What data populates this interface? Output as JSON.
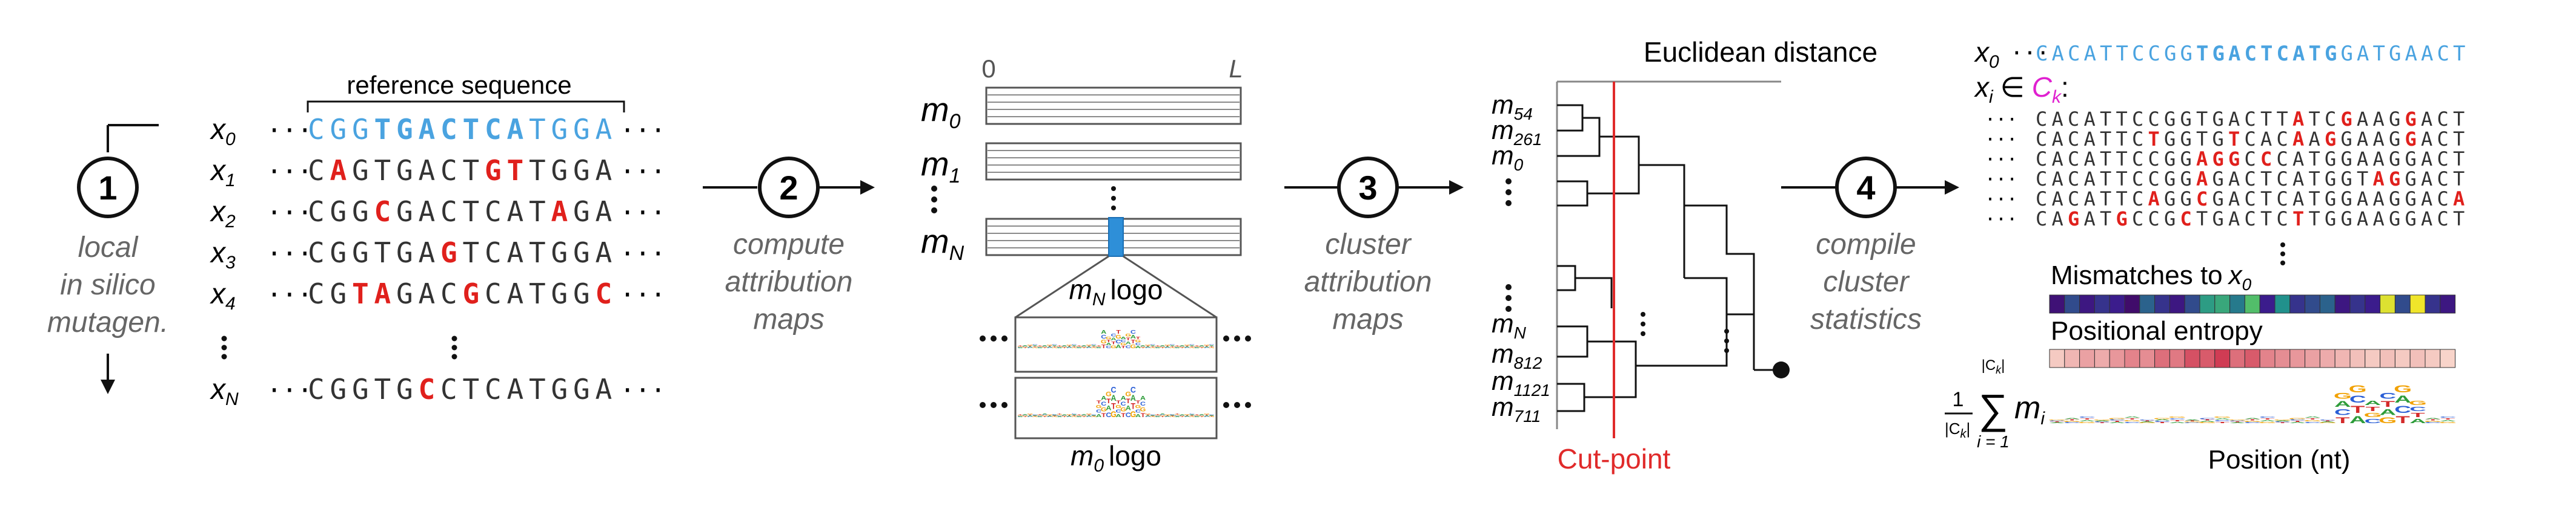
{
  "colors": {
    "reference": "#4aa3e0",
    "mutation": "#e0201c",
    "cluster": "#e020d0",
    "stage_text": "#555555",
    "cut": "#e02a2a",
    "bar": "#2e8fd8"
  },
  "stage1": {
    "step": "1",
    "caption_lines": [
      "local",
      "in silico",
      "mutagen."
    ],
    "reference_label": "reference sequence",
    "rows": [
      {
        "label": "x",
        "sub": "0",
        "seq": "CGGTGACTCATGGA",
        "muts": [],
        "is_ref": true
      },
      {
        "label": "x",
        "sub": "1",
        "seq": "CAGTGACTGTTGGA",
        "muts": [
          1,
          8,
          9
        ]
      },
      {
        "label": "x",
        "sub": "2",
        "seq": "CGGCGACTCATAGA",
        "muts": [
          3,
          11
        ]
      },
      {
        "label": "x",
        "sub": "3",
        "seq": "CGGTGAGTCATGGA",
        "muts": [
          6
        ]
      },
      {
        "label": "x",
        "sub": "4",
        "seq": "CGTAGACGCATGGC",
        "muts": [
          2,
          3,
          7,
          13
        ]
      },
      {
        "label": "x",
        "sub": "N",
        "seq": "CGGTGCCTCATGGA",
        "muts": [
          5
        ]
      }
    ]
  },
  "stage2": {
    "step": "2",
    "caption_lines": [
      "compute",
      "attribution",
      "maps"
    ],
    "axis_start": "0",
    "axis_end": "L",
    "map_labels": [
      {
        "label": "m",
        "sub": "0"
      },
      {
        "label": "m",
        "sub": "1"
      },
      {
        "label": "m",
        "sub": "N"
      }
    ],
    "zoom_logo_label": "m",
    "zoom_logo_sub": "N",
    "zoom_logo_suffix": "logo",
    "bottom_logo_label": "m",
    "bottom_logo_sub": "0",
    "bottom_logo_suffix": "logo"
  },
  "stage3": {
    "step": "3",
    "caption_lines": [
      "cluster",
      "attribution",
      "maps"
    ],
    "title": "Euclidean distance",
    "cut_label": "Cut-point",
    "leaves_top": [
      {
        "label": "m",
        "sub": "54"
      },
      {
        "label": "m",
        "sub": "261"
      },
      {
        "label": "m",
        "sub": "0"
      }
    ],
    "leaves_bottom": [
      {
        "label": "m",
        "sub": "N"
      },
      {
        "label": "m",
        "sub": "812"
      },
      {
        "label": "m",
        "sub": "1121"
      },
      {
        "label": "m",
        "sub": "711"
      }
    ]
  },
  "stage4": {
    "step": "4",
    "caption_lines": [
      "compile",
      "cluster",
      "statistics"
    ],
    "x0_label": "x",
    "x0_sub": "0",
    "x0_seq": "CACATTCCGGTGACTCATGGATGAACT",
    "x0_bold_range": [
      10,
      18
    ],
    "xi_label": "x",
    "xi_sub": "i",
    "in_symbol": "∈",
    "cluster_label": "C",
    "cluster_sub": "k",
    "cluster_rows": [
      {
        "seq": "CACATTCCGGTGACTTATCGAAGGACT",
        "muts": [
          16,
          19,
          23
        ]
      },
      {
        "seq": "CACATTCTGGTGTCACAAGGAAGGACT",
        "muts": [
          7,
          12,
          16,
          18,
          23
        ]
      },
      {
        "seq": "CACATTCCGGAGGCCCATGGAAGGACT",
        "muts": [
          10,
          11,
          12,
          14
        ]
      },
      {
        "seq": "CACATTCCGGAGACTCATGGTAGGACT",
        "muts": [
          10,
          21,
          22
        ]
      },
      {
        "seq": "CACATTCAGGCGACTCATGGAAGGACA",
        "muts": [
          7,
          10,
          26
        ]
      },
      {
        "seq": "CAGATGCCGCTGACTCTTGGAAGGACT",
        "muts": [
          2,
          5,
          9,
          16
        ]
      }
    ],
    "mismatch_title": "Mismatches to",
    "mismatch_var": "x",
    "mismatch_sub": "0",
    "mismatch_values": [
      0.15,
      0.35,
      0.2,
      0.3,
      0.25,
      0.1,
      0.4,
      0.3,
      0.2,
      0.35,
      0.55,
      0.6,
      0.45,
      0.7,
      0.25,
      0.5,
      0.3,
      0.35,
      0.4,
      0.2,
      0.3,
      0.25,
      0.95,
      0.35,
      0.98,
      0.3,
      0.2
    ],
    "entropy_title": "Positional entropy",
    "entropy_values": [
      0.15,
      0.25,
      0.35,
      0.3,
      0.4,
      0.5,
      0.45,
      0.6,
      0.55,
      0.75,
      0.7,
      0.85,
      0.6,
      0.7,
      0.5,
      0.45,
      0.4,
      0.35,
      0.3,
      0.25,
      0.2,
      0.15,
      0.2,
      0.15,
      0.2,
      0.15,
      0.1
    ],
    "formula_num": "1",
    "formula_den": "|C",
    "formula_den_sub": "k",
    "formula_sum_top": "|C",
    "formula_sum_top_sub": "k",
    "formula_sum_bottom": "i = 1",
    "formula_term": "m",
    "formula_term_sub": "i",
    "position_label": "Position (nt)"
  }
}
